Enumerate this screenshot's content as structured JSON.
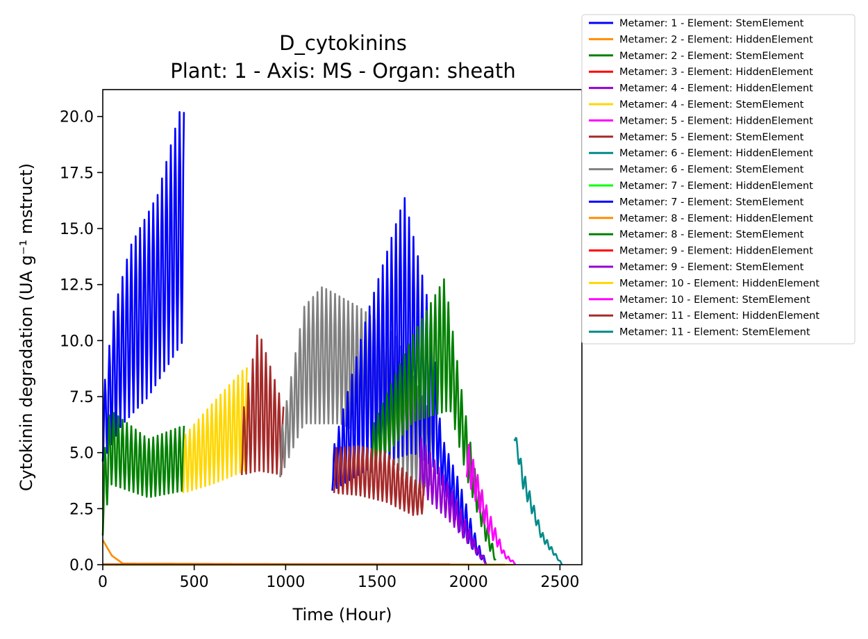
{
  "chart_data": {
    "type": "line",
    "title": "D_cytokinins",
    "subtitle": "Plant: 1 - Axis: MS - Organ: sheath",
    "xlabel": "Time (Hour)",
    "ylabel": "Cytokinin degradation (UA g⁻¹ mstruct)",
    "xlim": [
      0,
      2620
    ],
    "ylim": [
      0,
      21.2
    ],
    "xticks": [
      "0",
      "500",
      "1000",
      "1500",
      "2000",
      "2500"
    ],
    "yticks": [
      "0.0",
      "2.5",
      "5.0",
      "7.5",
      "10.0",
      "12.5",
      "15.0",
      "17.5",
      "20.0"
    ],
    "grid": false,
    "legend_position": "outside top-right",
    "series": [
      {
        "name": "Metamer: 1 - Element: StemElement",
        "color": "#0000ff",
        "t0": 0,
        "t1": 445,
        "lo": [
          [
            0,
            4.6
          ],
          [
            100,
            6.2
          ],
          [
            250,
            7.5
          ],
          [
            440,
            10.0
          ]
        ],
        "hi": [
          [
            0,
            7.5
          ],
          [
            60,
            11.3
          ],
          [
            150,
            14.2
          ],
          [
            300,
            16.5
          ],
          [
            420,
            20.2
          ]
        ]
      },
      {
        "name": "Metamer: 2 - Element: HiddenElement",
        "color": "#ff8c00",
        "t0": 0,
        "t1": 1800,
        "lo": [
          [
            0,
            1.1
          ],
          [
            50,
            0.4
          ],
          [
            110,
            0.05
          ],
          [
            1800,
            0.0
          ]
        ],
        "hi": [
          [
            0,
            1.1
          ],
          [
            50,
            0.4
          ],
          [
            110,
            0.05
          ],
          [
            1800,
            0.0
          ]
        ]
      },
      {
        "name": "Metamer: 2 - Element: StemElement",
        "color": "#008000",
        "t0": 0,
        "t1": 445,
        "lo": [
          [
            0,
            1.3
          ],
          [
            40,
            3.6
          ],
          [
            250,
            3.0
          ],
          [
            440,
            3.3
          ]
        ],
        "hi": [
          [
            0,
            4.5
          ],
          [
            40,
            6.9
          ],
          [
            250,
            5.6
          ],
          [
            440,
            6.2
          ]
        ]
      },
      {
        "name": "Metamer: 3 - Element: HiddenElement",
        "color": "#ff0000",
        "t0": 0,
        "t1": 1900,
        "lo": [
          [
            0,
            0.02
          ],
          [
            1900,
            0.02
          ]
        ],
        "hi": [
          [
            0,
            0.02
          ],
          [
            1900,
            0.02
          ]
        ]
      },
      {
        "name": "Metamer: 4 - Element: HiddenElement",
        "color": "#9400d3",
        "t0": 0,
        "t1": 2000,
        "lo": [
          [
            0,
            0.01
          ],
          [
            2000,
            0.01
          ]
        ],
        "hi": [
          [
            0,
            0.01
          ],
          [
            2000,
            0.01
          ]
        ]
      },
      {
        "name": "Metamer: 4 - Element: StemElement",
        "color": "#ffd700",
        "t0": 440,
        "t1": 790,
        "lo": [
          [
            440,
            3.2
          ],
          [
            600,
            3.6
          ],
          [
            780,
            4.2
          ]
        ],
        "hi": [
          [
            440,
            5.7
          ],
          [
            600,
            7.2
          ],
          [
            780,
            8.8
          ]
        ]
      },
      {
        "name": "Metamer: 5 - Element: HiddenElement",
        "color": "#ff00ff",
        "t0": 0,
        "t1": 2100,
        "lo": [
          [
            0,
            0.0
          ],
          [
            2100,
            0.0
          ]
        ],
        "hi": [
          [
            0,
            0.0
          ],
          [
            2100,
            0.0
          ]
        ]
      },
      {
        "name": "Metamer: 5 - Element: StemElement",
        "color": "#a52a2a",
        "t0": 760,
        "t1": 990,
        "lo": [
          [
            760,
            4.0
          ],
          [
            850,
            4.2
          ],
          [
            990,
            4.0
          ]
        ],
        "hi": [
          [
            760,
            6.5
          ],
          [
            850,
            10.5
          ],
          [
            990,
            7.0
          ]
        ]
      },
      {
        "name": "Metamer: 6 - Element: HiddenElement",
        "color": "#008b8b",
        "t0": 0,
        "t1": 2200,
        "lo": [
          [
            0,
            0.0
          ],
          [
            2200,
            0.0
          ]
        ],
        "hi": [
          [
            0,
            0.0
          ],
          [
            2200,
            0.0
          ]
        ]
      },
      {
        "name": "Metamer: 6 - Element: StemElement",
        "color": "#808080",
        "t0": 970,
        "t1": 1800,
        "lo": [
          [
            970,
            3.9
          ],
          [
            1100,
            6.3
          ],
          [
            1300,
            6.3
          ],
          [
            1500,
            5.5
          ],
          [
            1700,
            3.3
          ],
          [
            1800,
            3.6
          ]
        ],
        "hi": [
          [
            970,
            5.7
          ],
          [
            1100,
            11.5
          ],
          [
            1200,
            12.4
          ],
          [
            1400,
            11.5
          ],
          [
            1600,
            10.3
          ],
          [
            1800,
            6.6
          ]
        ]
      },
      {
        "name": "Metamer: 7 - Element: HiddenElement",
        "color": "#00ff00",
        "t0": 0,
        "t1": 2150,
        "lo": [
          [
            0,
            0.0
          ],
          [
            2150,
            0.0
          ]
        ],
        "hi": [
          [
            0,
            0.0
          ],
          [
            2150,
            0.0
          ]
        ]
      },
      {
        "name": "Metamer: 7 - Element: StemElement",
        "color": "#0000ff",
        "t0": 1255,
        "t1": 2100,
        "lo": [
          [
            1255,
            3.3
          ],
          [
            1500,
            4.5
          ],
          [
            1700,
            5.0
          ],
          [
            1820,
            4.3
          ],
          [
            1950,
            1.5
          ],
          [
            2050,
            0.4
          ],
          [
            2100,
            0.0
          ]
        ],
        "hi": [
          [
            1255,
            5.0
          ],
          [
            1450,
            11.3
          ],
          [
            1650,
            16.4
          ],
          [
            1800,
            11.0
          ],
          [
            1850,
            5.8
          ],
          [
            1950,
            3.7
          ],
          [
            2050,
            1.0
          ],
          [
            2100,
            0.1
          ]
        ]
      },
      {
        "name": "Metamer: 8 - Element: HiddenElement",
        "color": "#ff8c00",
        "t0": 0,
        "t1": 2000,
        "lo": [
          [
            0,
            0.0
          ],
          [
            2000,
            0.0
          ]
        ],
        "hi": [
          [
            0,
            0.0
          ],
          [
            2000,
            0.0
          ]
        ]
      },
      {
        "name": "Metamer: 8 - Element: StemElement",
        "color": "#008000",
        "t0": 1470,
        "t1": 2150,
        "lo": [
          [
            1470,
            4.1
          ],
          [
            1700,
            6.4
          ],
          [
            1900,
            6.9
          ],
          [
            2000,
            3.6
          ],
          [
            2100,
            0.9
          ],
          [
            2150,
            0.1
          ]
        ],
        "hi": [
          [
            1470,
            6.1
          ],
          [
            1700,
            10.3
          ],
          [
            1870,
            12.8
          ],
          [
            1960,
            7.9
          ],
          [
            2050,
            3.5
          ],
          [
            2150,
            0.3
          ]
        ]
      },
      {
        "name": "Metamer: 9 - Element: HiddenElement",
        "color": "#ff0000",
        "t0": 0,
        "t1": 2200,
        "lo": [
          [
            0,
            0.0
          ],
          [
            2200,
            0.0
          ]
        ],
        "hi": [
          [
            0,
            0.0
          ],
          [
            2200,
            0.0
          ]
        ]
      },
      {
        "name": "Metamer: 9 - Element: StemElement",
        "color": "#9400d3",
        "t0": 1730,
        "t1": 2100,
        "lo": [
          [
            1730,
            3.3
          ],
          [
            1900,
            1.9
          ],
          [
            2050,
            0.4
          ],
          [
            2100,
            0.0
          ]
        ],
        "hi": [
          [
            1730,
            5.8
          ],
          [
            1900,
            3.5
          ],
          [
            2050,
            0.8
          ],
          [
            2100,
            0.1
          ]
        ]
      },
      {
        "name": "Metamer: 10 - Element: HiddenElement",
        "color": "#ffd700",
        "t0": 0,
        "t1": 2250,
        "lo": [
          [
            0,
            0.0
          ],
          [
            2250,
            0.0
          ]
        ],
        "hi": [
          [
            0,
            0.0
          ],
          [
            2250,
            0.0
          ]
        ]
      },
      {
        "name": "Metamer: 10 - Element: StemElement",
        "color": "#ff00ff",
        "t0": 1990,
        "t1": 2260,
        "lo": [
          [
            1990,
            3.9
          ],
          [
            2100,
            1.5
          ],
          [
            2200,
            0.3
          ],
          [
            2260,
            0.0
          ]
        ],
        "hi": [
          [
            1990,
            5.7
          ],
          [
            2100,
            2.6
          ],
          [
            2200,
            0.5
          ],
          [
            2260,
            0.05
          ]
        ]
      },
      {
        "name": "Metamer: 11 - Element: HiddenElement",
        "color": "#a52a2a",
        "t0": 1265,
        "t1": 1760,
        "lo": [
          [
            1265,
            3.2
          ],
          [
            1400,
            3.1
          ],
          [
            1550,
            2.8
          ],
          [
            1700,
            2.2
          ],
          [
            1760,
            2.3
          ]
        ],
        "hi": [
          [
            1265,
            5.2
          ],
          [
            1400,
            5.3
          ],
          [
            1550,
            5.0
          ],
          [
            1700,
            3.8
          ],
          [
            1760,
            3.6
          ]
        ]
      },
      {
        "name": "Metamer: 11 - Element: StemElement",
        "color": "#008b8b",
        "t0": 2250,
        "t1": 2510,
        "lo": [
          [
            2250,
            5.6
          ],
          [
            2300,
            3.3
          ],
          [
            2400,
            1.1
          ],
          [
            2510,
            0.0
          ]
        ],
        "hi": [
          [
            2250,
            6.1
          ],
          [
            2300,
            4.2
          ],
          [
            2400,
            1.5
          ],
          [
            2510,
            0.05
          ]
        ]
      }
    ]
  }
}
